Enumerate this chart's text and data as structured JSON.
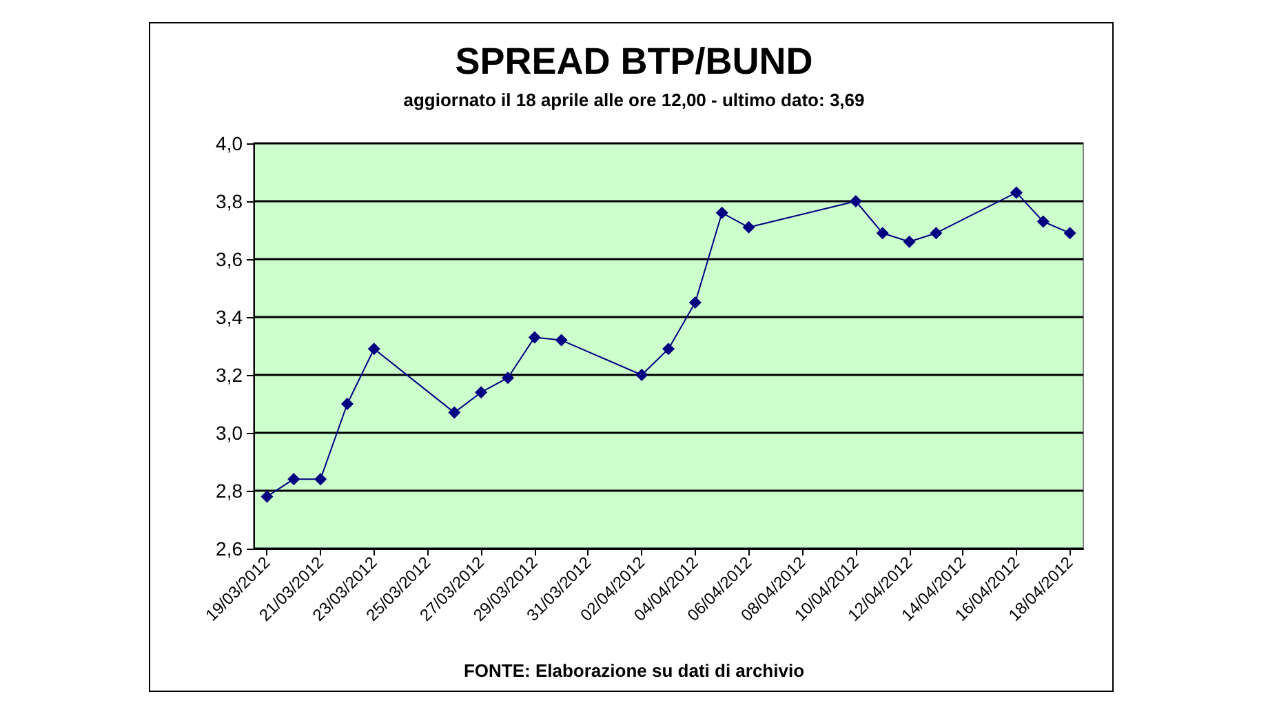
{
  "chart_data": {
    "type": "line",
    "title": "SPREAD BTP/BUND",
    "subtitle": "aggiornato il 18 aprile alle ore 12,00 - ultimo dato: 3,69",
    "annotations": [
      "FONTE: Elaborazione su dati di archivio"
    ],
    "x": [
      "2012-03-19",
      "2012-03-20",
      "2012-03-21",
      "2012-03-22",
      "2012-03-23",
      "2012-03-26",
      "2012-03-27",
      "2012-03-28",
      "2012-03-29",
      "2012-03-30",
      "2012-04-02",
      "2012-04-03",
      "2012-04-04",
      "2012-04-05",
      "2012-04-06",
      "2012-04-10",
      "2012-04-11",
      "2012-04-12",
      "2012-04-13",
      "2012-04-16",
      "2012-04-17",
      "2012-04-18"
    ],
    "series": [
      {
        "color": "#000080",
        "values": [
          2.78,
          2.84,
          2.84,
          3.1,
          3.29,
          3.07,
          3.14,
          3.19,
          3.33,
          3.32,
          3.2,
          3.29,
          3.45,
          3.76,
          3.71,
          3.8,
          3.69,
          3.66,
          3.69,
          3.83,
          3.73,
          3.69
        ]
      }
    ],
    "xlim": [
      "2012-03-18T12:00",
      "2012-04-18T12:00"
    ],
    "xticks": [
      {
        "value": "2012-03-19",
        "label": "19/03/2012"
      },
      {
        "value": "2012-03-21",
        "label": "21/03/2012"
      },
      {
        "value": "2012-03-23",
        "label": "23/03/2012"
      },
      {
        "value": "2012-03-25",
        "label": "25/03/2012"
      },
      {
        "value": "2012-03-27",
        "label": "27/03/2012"
      },
      {
        "value": "2012-03-29",
        "label": "29/03/2012"
      },
      {
        "value": "2012-03-31",
        "label": "31/03/2012"
      },
      {
        "value": "2012-04-02",
        "label": "02/04/2012"
      },
      {
        "value": "2012-04-04",
        "label": "04/04/2012"
      },
      {
        "value": "2012-04-06",
        "label": "06/04/2012"
      },
      {
        "value": "2012-04-08",
        "label": "08/04/2012"
      },
      {
        "value": "2012-04-10",
        "label": "10/04/2012"
      },
      {
        "value": "2012-04-12",
        "label": "12/04/2012"
      },
      {
        "value": "2012-04-14",
        "label": "14/04/2012"
      },
      {
        "value": "2012-04-16",
        "label": "16/04/2012"
      },
      {
        "value": "2012-04-18",
        "label": "18/04/2012"
      }
    ],
    "ylim": [
      2.6,
      4.0
    ],
    "yticks": [
      {
        "value": 2.6,
        "label": "2,6"
      },
      {
        "value": 2.8,
        "label": "2,8"
      },
      {
        "value": 3.0,
        "label": "3,0"
      },
      {
        "value": 3.2,
        "label": "3,2"
      },
      {
        "value": 3.4,
        "label": "3,4"
      },
      {
        "value": 3.6,
        "label": "3,6"
      },
      {
        "value": 3.8,
        "label": "3,8"
      },
      {
        "value": 4.0,
        "label": "4,0"
      }
    ],
    "grid": "y",
    "marker": "diamond",
    "line_style": "solid"
  }
}
